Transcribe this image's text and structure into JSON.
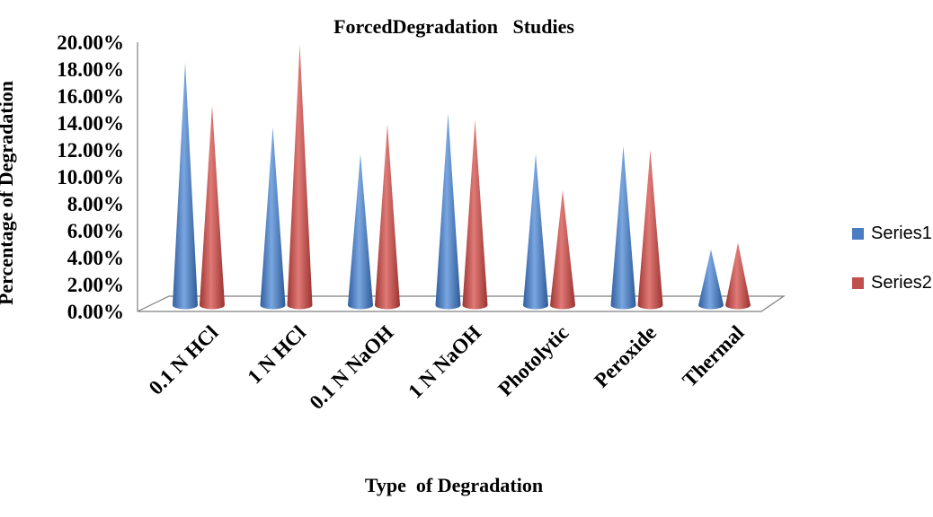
{
  "chart_data": {
    "type": "bar",
    "title": "ForcedDegradation   Studies",
    "xlabel": "Type  of Degradation",
    "ylabel": "Percentage of Degradation",
    "categories": [
      "0.1 N HCl",
      "1 N HCl",
      "0.1 N NaOH",
      "1 N NaOH",
      "Photolytic",
      "Peroxide",
      "Thermal"
    ],
    "series": [
      {
        "name": "Series1",
        "color": "#4a7cc4",
        "values": [
          0.185,
          0.137,
          0.117,
          0.147,
          0.117,
          0.123,
          0.046
        ]
      },
      {
        "name": "Series2",
        "color": "#c0504d",
        "values": [
          0.153,
          0.198,
          0.139,
          0.142,
          0.09,
          0.12,
          0.051
        ]
      }
    ],
    "ylim": [
      0,
      0.2
    ],
    "yticks": [
      "0.00%",
      "2.00%",
      "4.00%",
      "6.00%",
      "8.00%",
      "10.00%",
      "12.00%",
      "14.00%",
      "16.00%",
      "18.00%",
      "20.00%"
    ],
    "shape": "cone",
    "legend_position": "right",
    "grid": false
  }
}
